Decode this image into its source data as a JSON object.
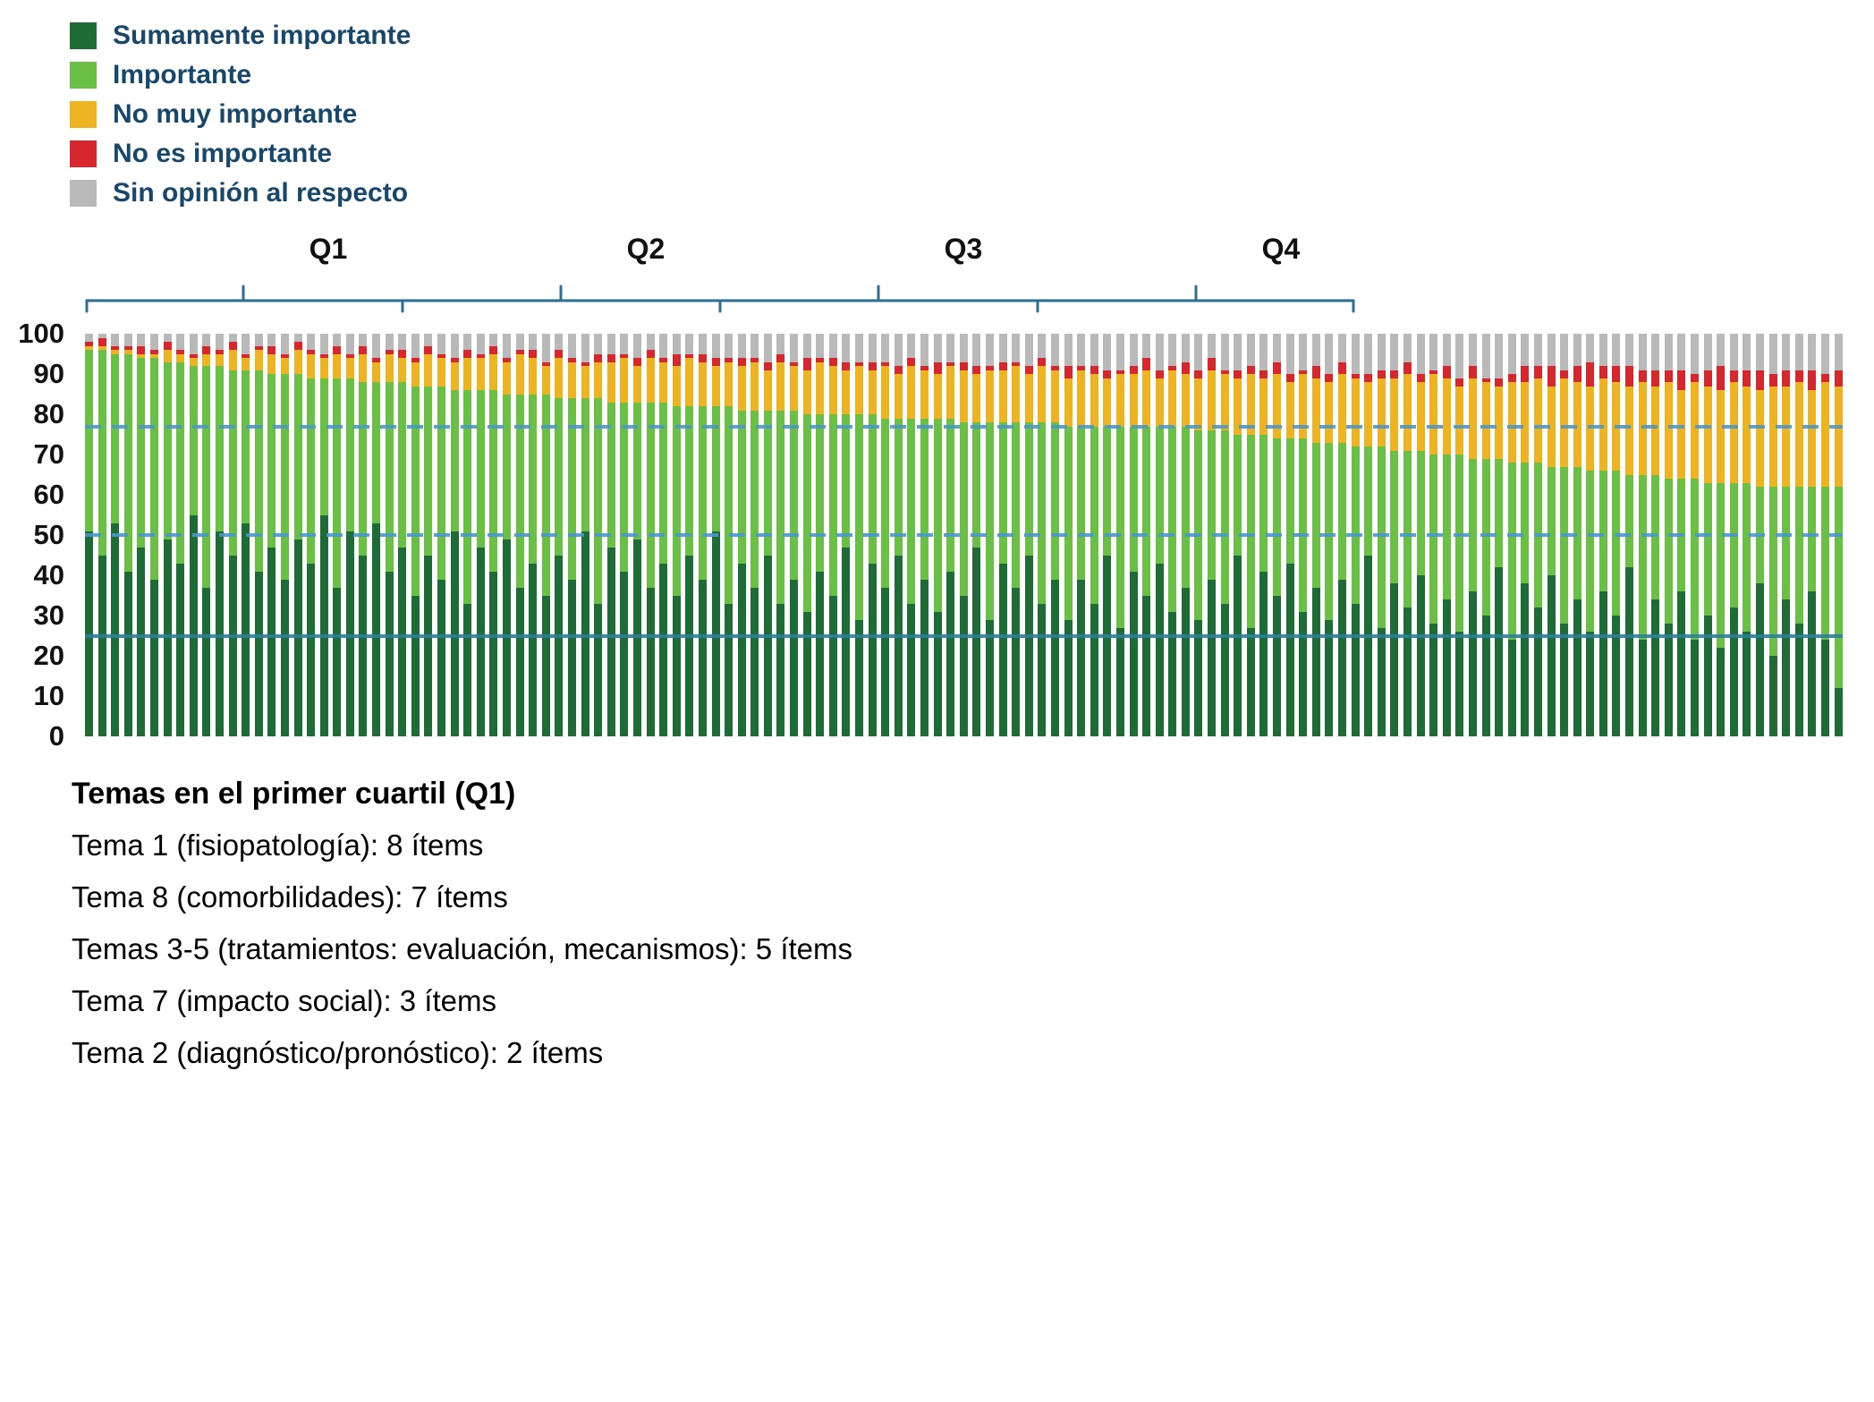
{
  "legend": {
    "label_color": "#17476b",
    "items": [
      {
        "label": "Sumamente importante",
        "color": "#1d6b35"
      },
      {
        "label": "Importante",
        "color": "#6abf45"
      },
      {
        "label": "No muy importante",
        "color": "#eeb321"
      },
      {
        "label": "No es importante",
        "color": "#d7262c"
      },
      {
        "label": "Sin opinión al respecto",
        "color": "#b9b9b9"
      }
    ]
  },
  "quartiles": {
    "labels": [
      "Q1",
      "Q2",
      "Q3",
      "Q4"
    ],
    "bracket_color": "#2d6f94"
  },
  "y_axis": {
    "ticks": [
      100,
      90,
      80,
      70,
      60,
      50,
      40,
      30,
      20,
      10,
      0
    ]
  },
  "reference_lines": [
    {
      "value": 77,
      "style": "dashed",
      "color": "#4a97c9"
    },
    {
      "value": 50,
      "style": "dashed",
      "color": "#4a97c9"
    },
    {
      "value": 25,
      "style": "solid",
      "color": "#2a7f9e"
    }
  ],
  "caption": {
    "title": "Temas en el primer cuartil (Q1)",
    "lines": [
      "Tema 1 (fisiopatología): 8 ítems",
      "Tema 8 (comorbilidades): 7 ítems",
      "Temas 3-5 (tratamientos: evaluación, mecanismos): 5 ítems",
      "Tema 7 (impacto social): 3 ítems",
      "Tema 2 (diagnóstico/pronóstico): 2 ítems"
    ]
  },
  "chart_data": {
    "type": "bar",
    "stacked": true,
    "ylim": [
      0,
      100
    ],
    "n_bars": 135,
    "x_tick_labels": [],
    "legend_position": "top-left",
    "series": [
      {
        "name": "Sumamente importante",
        "color": "#1d6b35",
        "values": [
          51,
          45,
          53,
          41,
          47,
          39,
          49,
          43,
          55,
          37,
          51,
          45,
          53,
          41,
          47,
          39,
          49,
          43,
          55,
          37,
          51,
          45,
          53,
          41,
          47,
          35,
          45,
          39,
          51,
          33,
          47,
          41,
          49,
          37,
          43,
          35,
          45,
          39,
          51,
          33,
          47,
          41,
          49,
          37,
          43,
          35,
          45,
          39,
          51,
          33,
          43,
          37,
          45,
          33,
          39,
          31,
          41,
          35,
          47,
          29,
          43,
          37,
          45,
          33,
          39,
          31,
          41,
          35,
          47,
          29,
          43,
          37,
          45,
          33,
          39,
          29,
          39,
          33,
          45,
          27,
          41,
          35,
          43,
          31,
          37,
          29,
          39,
          33,
          45,
          27,
          41,
          35,
          43,
          31,
          37,
          29,
          39,
          33,
          45,
          27,
          38,
          32,
          40,
          28,
          34,
          26,
          36,
          30,
          42,
          24,
          38,
          32,
          40,
          28,
          34,
          26,
          36,
          30,
          42,
          24,
          34,
          28,
          36,
          24,
          30,
          22,
          32,
          26,
          38,
          20,
          34,
          28,
          36,
          24,
          12
        ]
      },
      {
        "name": "Importante",
        "color": "#6abf45",
        "values": [
          45,
          51,
          42,
          54,
          47,
          55,
          44,
          50,
          37,
          55,
          41,
          46,
          38,
          50,
          43,
          51,
          41,
          46,
          34,
          52,
          38,
          43,
          35,
          47,
          41,
          52,
          42,
          48,
          35,
          53,
          39,
          45,
          36,
          48,
          42,
          50,
          39,
          45,
          33,
          51,
          36,
          42,
          34,
          46,
          40,
          47,
          37,
          43,
          31,
          49,
          38,
          44,
          36,
          48,
          42,
          49,
          39,
          45,
          33,
          51,
          37,
          42,
          34,
          46,
          40,
          48,
          38,
          43,
          31,
          49,
          35,
          41,
          33,
          45,
          39,
          48,
          38,
          44,
          32,
          50,
          36,
          42,
          34,
          46,
          40,
          47,
          37,
          43,
          30,
          48,
          34,
          39,
          31,
          43,
          36,
          44,
          34,
          39,
          27,
          45,
          33,
          39,
          31,
          42,
          36,
          44,
          33,
          39,
          27,
          44,
          30,
          36,
          27,
          39,
          33,
          40,
          30,
          36,
          23,
          41,
          31,
          36,
          28,
          40,
          33,
          41,
          31,
          37,
          24,
          42,
          28,
          34,
          26,
          38,
          50
        ]
      },
      {
        "name": "No muy importante",
        "color": "#eeb321",
        "values": [
          1,
          1,
          1,
          1,
          1,
          1,
          3,
          2,
          2,
          3,
          3,
          5,
          3,
          5,
          5,
          4,
          6,
          6,
          5,
          6,
          5,
          7,
          5,
          7,
          6,
          6,
          8,
          7,
          7,
          8,
          8,
          9,
          8,
          10,
          9,
          7,
          10,
          9,
          8,
          9,
          10,
          11,
          9,
          11,
          10,
          10,
          12,
          11,
          10,
          11,
          11,
          12,
          10,
          12,
          11,
          11,
          13,
          12,
          11,
          12,
          11,
          13,
          11,
          13,
          12,
          11,
          13,
          13,
          12,
          13,
          13,
          14,
          12,
          14,
          13,
          12,
          14,
          13,
          12,
          13,
          13,
          14,
          12,
          14,
          13,
          13,
          15,
          14,
          14,
          15,
          14,
          16,
          14,
          16,
          16,
          15,
          17,
          17,
          16,
          17,
          18,
          19,
          17,
          20,
          19,
          17,
          20,
          19,
          18,
          20,
          20,
          21,
          20,
          22,
          21,
          21,
          23,
          22,
          22,
          23,
          22,
          24,
          22,
          24,
          24,
          23,
          25,
          24,
          24,
          25,
          25,
          26,
          24,
          26,
          25
        ]
      },
      {
        "name": "No es importante",
        "color": "#d7262c",
        "values": [
          1,
          2,
          1,
          1,
          2,
          1,
          2,
          1,
          1,
          2,
          1,
          2,
          1,
          1,
          2,
          1,
          2,
          1,
          1,
          2,
          1,
          2,
          1,
          1,
          2,
          1,
          2,
          1,
          1,
          2,
          1,
          2,
          1,
          1,
          2,
          1,
          2,
          1,
          1,
          2,
          2,
          1,
          2,
          2,
          1,
          3,
          1,
          2,
          2,
          1,
          2,
          1,
          2,
          2,
          1,
          3,
          1,
          2,
          2,
          1,
          2,
          1,
          2,
          2,
          1,
          3,
          1,
          2,
          2,
          1,
          2,
          1,
          2,
          2,
          1,
          3,
          1,
          2,
          2,
          1,
          2,
          3,
          2,
          1,
          3,
          2,
          3,
          1,
          2,
          2,
          2,
          3,
          2,
          1,
          3,
          2,
          3,
          1,
          2,
          2,
          2,
          3,
          2,
          1,
          3,
          2,
          3,
          1,
          2,
          2,
          4,
          3,
          5,
          2,
          4,
          6,
          3,
          4,
          5,
          3,
          4,
          3,
          5,
          2,
          4,
          6,
          3,
          4,
          5,
          3,
          4,
          3,
          5,
          2,
          4
        ]
      },
      {
        "name": "Sin opinión al respecto",
        "color": "#b9b9b9",
        "values": [
          2,
          1,
          3,
          3,
          3,
          4,
          2,
          4,
          5,
          3,
          4,
          2,
          5,
          3,
          3,
          5,
          2,
          4,
          5,
          3,
          5,
          3,
          6,
          4,
          4,
          6,
          3,
          5,
          6,
          4,
          5,
          3,
          6,
          4,
          4,
          7,
          4,
          6,
          7,
          5,
          5,
          5,
          6,
          4,
          6,
          5,
          5,
          5,
          6,
          6,
          6,
          6,
          7,
          5,
          7,
          6,
          6,
          6,
          7,
          7,
          7,
          7,
          8,
          6,
          8,
          7,
          7,
          7,
          8,
          8,
          7,
          7,
          8,
          6,
          8,
          8,
          8,
          8,
          9,
          9,
          8,
          6,
          9,
          8,
          7,
          9,
          6,
          9,
          9,
          8,
          9,
          7,
          10,
          9,
          8,
          10,
          7,
          10,
          10,
          9,
          9,
          7,
          10,
          9,
          8,
          11,
          8,
          11,
          11,
          10,
          8,
          8,
          8,
          9,
          8,
          7,
          8,
          8,
          8,
          9,
          9,
          9,
          9,
          10,
          9,
          8,
          9,
          9,
          9,
          10,
          9,
          9,
          9,
          10,
          9
        ]
      }
    ]
  }
}
